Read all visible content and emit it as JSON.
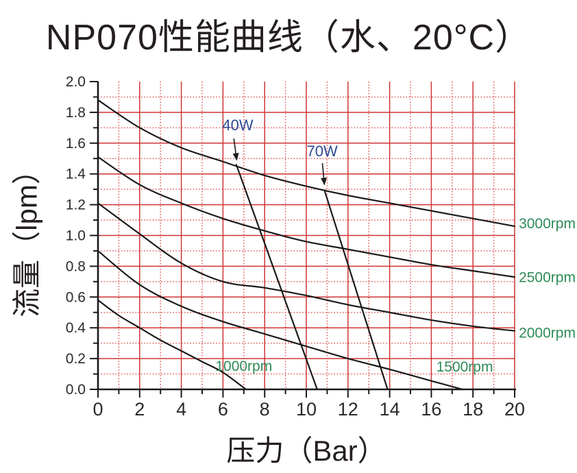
{
  "chart_data": {
    "type": "line",
    "title": "NP070性能曲线（水、20°C）",
    "xlabel": "压力（Bar）",
    "ylabel": "流量（lpm）",
    "xlim": [
      0,
      20
    ],
    "ylim": [
      0.0,
      2.0
    ],
    "x_major_step": 2,
    "x_minor_step": 1,
    "y_major_step": 0.2,
    "y_minor_step": 0.1,
    "xticks": [
      "0",
      "2",
      "4",
      "6",
      "8",
      "10",
      "12",
      "14",
      "16",
      "18",
      "20"
    ],
    "yticks": [
      "0.0",
      "0.2",
      "0.4",
      "0.6",
      "0.8",
      "1.0",
      "1.2",
      "1.4",
      "1.6",
      "1.8",
      "2.0"
    ],
    "grid": {
      "major_color": "#cf3434",
      "minor_color": "#e05a5a",
      "minor_style": "dotted"
    },
    "series": [
      {
        "name": "3000rpm",
        "kind": "pump-curve",
        "points": [
          [
            0,
            1.88
          ],
          [
            2,
            1.7
          ],
          [
            4,
            1.57
          ],
          [
            6,
            1.48
          ],
          [
            8,
            1.39
          ],
          [
            10,
            1.32
          ],
          [
            12,
            1.26
          ],
          [
            14,
            1.21
          ],
          [
            16,
            1.16
          ],
          [
            18,
            1.11
          ],
          [
            20,
            1.06
          ]
        ]
      },
      {
        "name": "2500rpm",
        "kind": "pump-curve",
        "points": [
          [
            0,
            1.51
          ],
          [
            2,
            1.33
          ],
          [
            4,
            1.21
          ],
          [
            6,
            1.11
          ],
          [
            8,
            1.03
          ],
          [
            10,
            0.96
          ],
          [
            12,
            0.91
          ],
          [
            14,
            0.86
          ],
          [
            16,
            0.81
          ],
          [
            18,
            0.77
          ],
          [
            20,
            0.73
          ]
        ]
      },
      {
        "name": "2000rpm",
        "kind": "pump-curve",
        "points": [
          [
            0,
            1.21
          ],
          [
            2,
            1.01
          ],
          [
            4,
            0.82
          ],
          [
            6,
            0.7
          ],
          [
            8,
            0.66
          ],
          [
            10,
            0.61
          ],
          [
            12,
            0.55
          ],
          [
            14,
            0.5
          ],
          [
            16,
            0.45
          ],
          [
            18,
            0.41
          ],
          [
            20,
            0.38
          ]
        ]
      },
      {
        "name": "1500rpm",
        "kind": "pump-curve",
        "points": [
          [
            0,
            0.9
          ],
          [
            2,
            0.68
          ],
          [
            4,
            0.54
          ],
          [
            6,
            0.44
          ],
          [
            8,
            0.36
          ],
          [
            10,
            0.28
          ],
          [
            12,
            0.2
          ],
          [
            14,
            0.13
          ],
          [
            16,
            0.055
          ],
          [
            17.5,
            0
          ]
        ]
      },
      {
        "name": "1000rpm",
        "kind": "pump-curve",
        "points": [
          [
            0,
            0.58
          ],
          [
            1,
            0.48
          ],
          [
            2,
            0.4
          ],
          [
            3,
            0.32
          ],
          [
            4,
            0.25
          ],
          [
            5,
            0.18
          ],
          [
            6,
            0.11
          ],
          [
            7.1,
            0
          ]
        ]
      },
      {
        "name": "40W",
        "kind": "power-limit",
        "points": [
          [
            6.64,
            1.46
          ],
          [
            10.52,
            0
          ]
        ]
      },
      {
        "name": "70W",
        "kind": "power-limit",
        "points": [
          [
            10.88,
            1.29
          ],
          [
            13.9,
            0
          ]
        ]
      }
    ],
    "annotations": [
      {
        "text": "40W",
        "x": 6.71,
        "y": 1.72,
        "color": "#2d4b96",
        "anchor": "middle",
        "size": 22
      },
      {
        "text": "70W",
        "x": 10.76,
        "y": 1.55,
        "color": "#2d4b96",
        "anchor": "middle",
        "size": 22
      },
      {
        "text": "3000rpm",
        "x": 20.2,
        "y": 1.08,
        "color": "#2e8b57",
        "anchor": "start",
        "size": 21
      },
      {
        "text": "2500rpm",
        "x": 20.2,
        "y": 0.73,
        "color": "#2e8b57",
        "anchor": "start",
        "size": 21
      },
      {
        "text": "2000rpm",
        "x": 20.2,
        "y": 0.37,
        "color": "#2e8b57",
        "anchor": "start",
        "size": 21
      },
      {
        "text": "1500rpm",
        "x": 17.6,
        "y": 0.15,
        "color": "#2e8b57",
        "anchor": "middle",
        "size": 21
      },
      {
        "text": "1000rpm",
        "x": 7.0,
        "y": 0.155,
        "color": "#2e8b57",
        "anchor": "middle",
        "size": 21
      }
    ],
    "arrows": [
      {
        "x1": 6.52,
        "y1": 1.63,
        "x2": 6.66,
        "y2": 1.49
      },
      {
        "x1": 10.77,
        "y1": 1.47,
        "x2": 10.87,
        "y2": 1.33
      }
    ],
    "colors": {
      "curve": "#1b1b1b",
      "axis": "#1b1b1b",
      "tick_text": "#2b2b2b"
    }
  }
}
